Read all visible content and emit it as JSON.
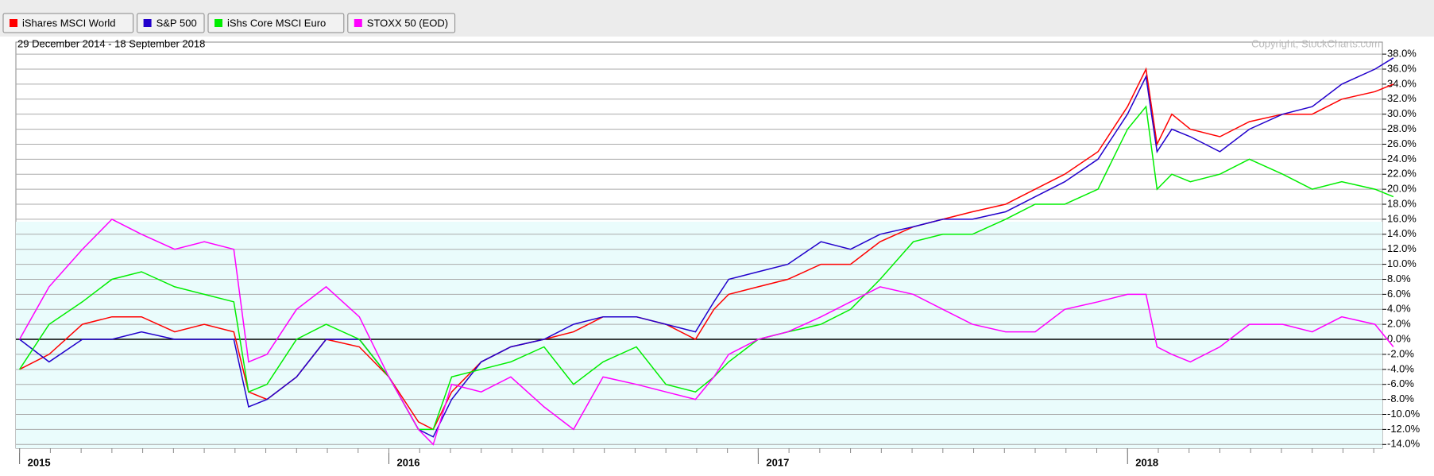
{
  "chart_data": {
    "type": "line",
    "subtitle": "29 December 2014 - 18 September 2018",
    "annotation": "Copyright, StockCharts.com",
    "x": [
      2015.0,
      2015.08,
      2015.17,
      2015.25,
      2015.33,
      2015.42,
      2015.5,
      2015.58,
      2015.62,
      2015.67,
      2015.75,
      2015.83,
      2015.92,
      2016.0,
      2016.08,
      2016.12,
      2016.17,
      2016.25,
      2016.33,
      2016.42,
      2016.5,
      2016.58,
      2016.67,
      2016.75,
      2016.83,
      2016.88,
      2016.92,
      2017.0,
      2017.08,
      2017.17,
      2017.25,
      2017.33,
      2017.42,
      2017.5,
      2017.58,
      2017.67,
      2017.75,
      2017.83,
      2017.92,
      2018.0,
      2018.05,
      2018.08,
      2018.12,
      2018.17,
      2018.25,
      2018.33,
      2018.42,
      2018.5,
      2018.58,
      2018.67,
      2018.72
    ],
    "series": [
      {
        "name": "iShares MSCI World",
        "color": "#ff0000",
        "values": [
          -4,
          -2,
          2,
          3,
          3,
          1,
          2,
          1,
          -7,
          -8,
          -5,
          0,
          -1,
          -5,
          -11,
          -12,
          -7,
          -3,
          -1,
          0,
          1,
          3,
          3,
          2,
          0,
          4,
          6,
          7,
          8,
          10,
          10,
          13,
          15,
          16,
          17,
          18,
          20,
          22,
          25,
          31,
          36,
          26,
          30,
          28,
          27,
          29,
          30,
          30,
          32,
          33,
          34
        ]
      },
      {
        "name": "S&P 500",
        "color": "#2200cc",
        "values": [
          0,
          -3,
          0,
          0,
          1,
          0,
          0,
          0,
          -9,
          -8,
          -5,
          0,
          0,
          -5,
          -12,
          -13,
          -8,
          -3,
          -1,
          0,
          2,
          3,
          3,
          2,
          1,
          5,
          8,
          9,
          10,
          13,
          12,
          14,
          15,
          16,
          16,
          17,
          19,
          21,
          24,
          30,
          35,
          25,
          28,
          27,
          25,
          28,
          30,
          31,
          34,
          36,
          37.5
        ]
      },
      {
        "name": "iShs Core MSCI Euro",
        "color": "#00ee00",
        "values": [
          -4,
          2,
          5,
          8,
          9,
          7,
          6,
          5,
          -7,
          -6,
          0,
          2,
          0,
          -5,
          -12,
          -12,
          -5,
          -4,
          -3,
          -1,
          -6,
          -3,
          -1,
          -6,
          -7,
          -5,
          -3,
          0,
          1,
          2,
          4,
          8,
          13,
          14,
          14,
          16,
          18,
          18,
          20,
          28,
          31,
          20,
          22,
          21,
          22,
          24,
          22,
          20,
          21,
          20,
          19
        ]
      },
      {
        "name": "STOXX 50 (EOD)",
        "color": "#ff00ff",
        "values": [
          0,
          7,
          12,
          16,
          14,
          12,
          13,
          12,
          -3,
          -2,
          4,
          7,
          3,
          -5,
          -12,
          -14,
          -6,
          -7,
          -5,
          -9,
          -12,
          -5,
          -6,
          -7,
          -8,
          -5,
          -2,
          0,
          1,
          3,
          5,
          7,
          6,
          4,
          2,
          1,
          1,
          4,
          5,
          6,
          6,
          -1,
          -2,
          -3,
          -1,
          2,
          2,
          1,
          3,
          2,
          -1
        ]
      }
    ],
    "xlim": [
      2014.99,
      2018.69
    ],
    "xticks": [
      2015,
      2016,
      2017,
      2018
    ],
    "ylim": [
      -14.5,
      39.6
    ],
    "yticks": [
      {
        "value": -14,
        "label": "-14.0%"
      },
      {
        "value": -12,
        "label": "-12.0%"
      },
      {
        "value": -10,
        "label": "-10.0%"
      },
      {
        "value": -8,
        "label": "-8.0%"
      },
      {
        "value": -6,
        "label": "-6.0%"
      },
      {
        "value": -4,
        "label": "-4.0%"
      },
      {
        "value": -2,
        "label": "-2.0%"
      },
      {
        "value": 0,
        "label": "0.0%"
      },
      {
        "value": 2,
        "label": "2.0%"
      },
      {
        "value": 4,
        "label": "4.0%"
      },
      {
        "value": 6,
        "label": "6.0%"
      },
      {
        "value": 8,
        "label": "8.0%"
      },
      {
        "value": 10,
        "label": "10.0%"
      },
      {
        "value": 12,
        "label": "12.0%"
      },
      {
        "value": 14,
        "label": "14.0%"
      },
      {
        "value": 16,
        "label": "16.0%"
      },
      {
        "value": 18,
        "label": "18.0%"
      },
      {
        "value": 20,
        "label": "20.0%"
      },
      {
        "value": 22,
        "label": "22.0%"
      },
      {
        "value": 24,
        "label": "24.0%"
      },
      {
        "value": 26,
        "label": "26.0%"
      },
      {
        "value": 28,
        "label": "28.0%"
      },
      {
        "value": 30,
        "label": "30.0%"
      },
      {
        "value": 32,
        "label": "32.0%"
      },
      {
        "value": 34,
        "label": "34.0%"
      },
      {
        "value": 36,
        "label": "36.0%"
      },
      {
        "value": 38,
        "label": "38.0%"
      }
    ],
    "grid": true
  }
}
